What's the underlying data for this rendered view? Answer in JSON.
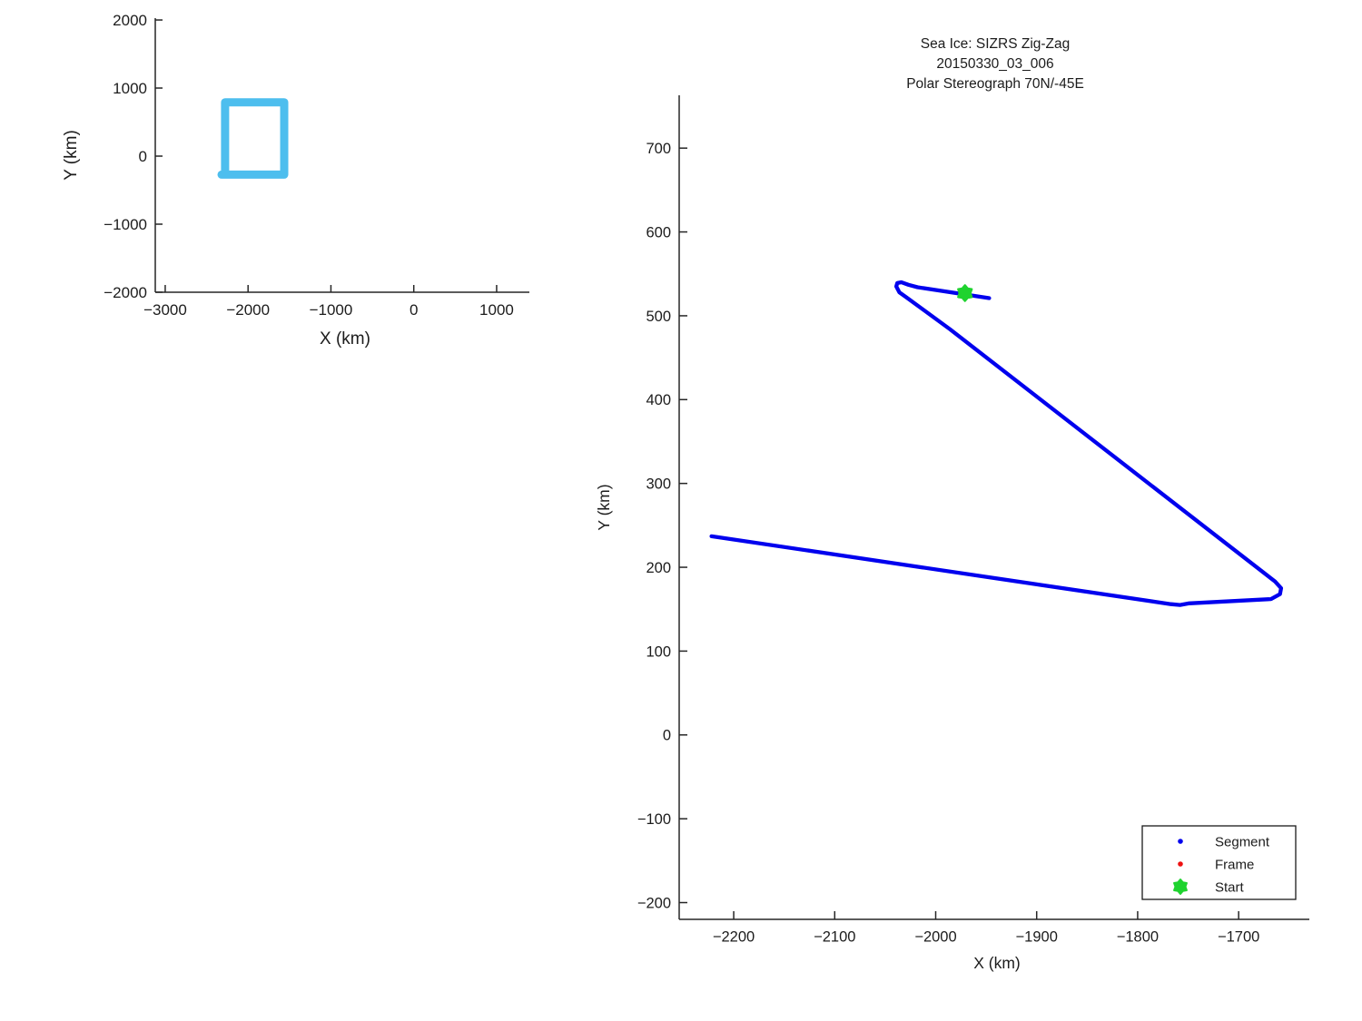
{
  "figure": {
    "background": "#ffffff",
    "description": "MATLAB-style figure with two plots: small overview of SIZRS box track, large zoomed zig-zag flight track"
  },
  "colors": {
    "axis": "#262626",
    "tick_text": "#1c1c1c",
    "title_text": "#000000",
    "segment_line": "#0000EE",
    "frame_dot": "#EE1111",
    "start_marker": "#1FD32F",
    "overview_box": "#4DBEEE",
    "legend_border": "#1a1a1a",
    "legend_bg": "#ffffff"
  },
  "legend": {
    "position": "lower-right",
    "entries": [
      {
        "label": "Segment",
        "marker": "dot",
        "color": "#0000EE"
      },
      {
        "label": "Frame",
        "marker": "dot",
        "color": "#EE1111"
      },
      {
        "label": "Start",
        "marker": "hexagram",
        "color": "#1FD32F"
      }
    ]
  },
  "chart_data": [
    {
      "id": "overview",
      "type": "line",
      "title": "",
      "xlabel": "X (km)",
      "ylabel": "Y (km)",
      "xlim": [
        -3120,
        1395
      ],
      "ylim": [
        -2000,
        2027
      ],
      "xticks": [
        -3000,
        -2000,
        -1000,
        0,
        1000
      ],
      "yticks": [
        -2000,
        -1000,
        0,
        1000,
        2000
      ],
      "grid": false,
      "legend": false,
      "series": [
        {
          "name": "sizrs-operating-box",
          "color": "#4DBEEE",
          "line_width": 9,
          "points": [
            [
              -2277,
              -206
            ],
            [
              -2277,
              791
            ],
            [
              -1564,
              791
            ],
            [
              -1564,
              -272
            ],
            [
              -2320,
              -272
            ]
          ]
        }
      ]
    },
    {
      "id": "zigzag",
      "type": "line",
      "title_lines": [
        "Sea Ice: SIZRS Zig-Zag",
        "20150330_03_006",
        "Polar Stereograph 70N/-45E"
      ],
      "xlabel": "X (km)",
      "ylabel": "Y (km)",
      "xlim": [
        -2254,
        -1630
      ],
      "ylim": [
        -220,
        763
      ],
      "xticks": [
        -2200,
        -2100,
        -2000,
        -1900,
        -1800,
        -1700
      ],
      "yticks": [
        -200,
        -100,
        0,
        100,
        200,
        300,
        400,
        500,
        600,
        700
      ],
      "grid": false,
      "legend": true,
      "series": [
        {
          "name": "segment-track",
          "color": "#0000EE",
          "line_width": 4.3,
          "points": [
            [
              -1947,
              521
            ],
            [
              -2018,
              534
            ],
            [
              -2027,
              537
            ],
            [
              -2034,
              540
            ],
            [
              -2038,
              539
            ],
            [
              -2039,
              535
            ],
            [
              -2036,
              528
            ],
            [
              -2029,
              522
            ],
            [
              -1986,
              484
            ],
            [
              -1664,
              183
            ],
            [
              -1658,
              175
            ],
            [
              -1659,
              168
            ],
            [
              -1668,
              162
            ],
            [
              -1749,
              157
            ],
            [
              -1758,
              155
            ],
            [
              -1767,
              156
            ],
            [
              -2222,
              237
            ]
          ]
        }
      ],
      "markers": [
        {
          "name": "start",
          "shape": "hexagram",
          "color": "#1FD32F",
          "x": -1971,
          "y": 527,
          "size": 17
        }
      ]
    }
  ]
}
